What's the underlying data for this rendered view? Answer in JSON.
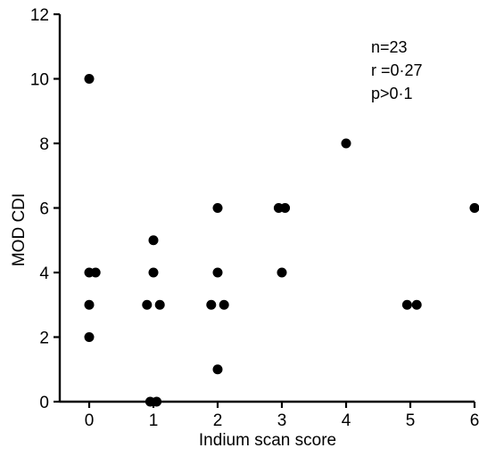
{
  "chart_data": {
    "type": "scatter",
    "xlabel": "Indium scan score",
    "ylabel": "MOD CDI",
    "xlim": [
      0,
      6
    ],
    "ylim": [
      0,
      12
    ],
    "xticks": [
      "0",
      "1",
      "2",
      "3",
      "4",
      "5",
      "6"
    ],
    "yticks": [
      "0",
      "2",
      "4",
      "6",
      "8",
      "10",
      "12"
    ],
    "grid": false,
    "annotations": [
      "n=23",
      "r =0·27",
      "p>0·1"
    ],
    "points": [
      {
        "x": 0,
        "y": 10
      },
      {
        "x": 0,
        "y": 4
      },
      {
        "x": 0.1,
        "y": 4
      },
      {
        "x": 0,
        "y": 3
      },
      {
        "x": 0,
        "y": 2
      },
      {
        "x": 1,
        "y": 5
      },
      {
        "x": 1,
        "y": 4
      },
      {
        "x": 0.9,
        "y": 3
      },
      {
        "x": 1.1,
        "y": 3
      },
      {
        "x": 0.95,
        "y": 0
      },
      {
        "x": 1.05,
        "y": 0
      },
      {
        "x": 2,
        "y": 6
      },
      {
        "x": 2,
        "y": 4
      },
      {
        "x": 1.9,
        "y": 3
      },
      {
        "x": 2.1,
        "y": 3
      },
      {
        "x": 2,
        "y": 1
      },
      {
        "x": 2.95,
        "y": 6
      },
      {
        "x": 3.05,
        "y": 6
      },
      {
        "x": 3,
        "y": 4
      },
      {
        "x": 4,
        "y": 8
      },
      {
        "x": 4.95,
        "y": 3
      },
      {
        "x": 5.1,
        "y": 3
      },
      {
        "x": 6,
        "y": 6
      }
    ]
  }
}
